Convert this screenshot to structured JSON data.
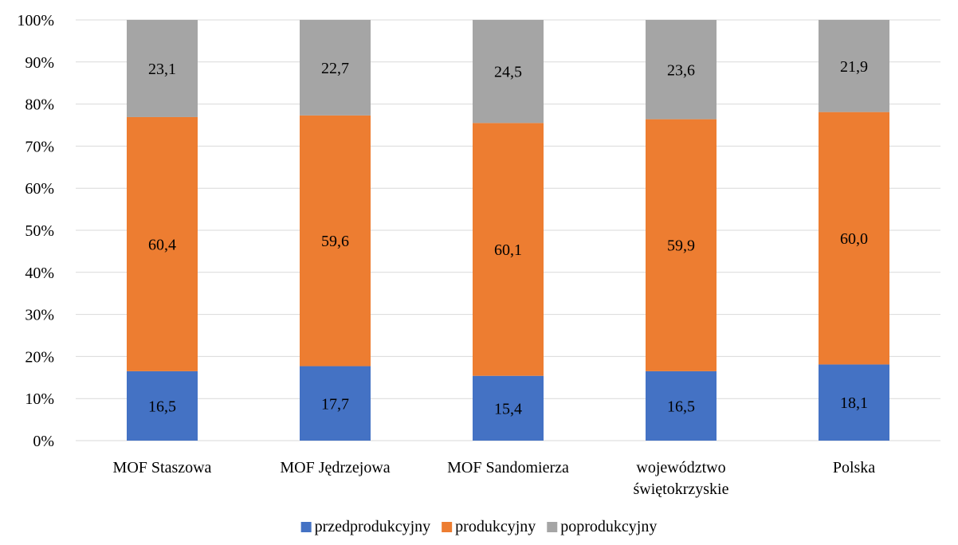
{
  "chart_data": {
    "type": "bar",
    "stacked": true,
    "percent_stacked": true,
    "categories": [
      [
        "MOF Staszowa"
      ],
      [
        "MOF Jędrzejowa"
      ],
      [
        "MOF Sandomierza"
      ],
      [
        "województwo",
        "świętokrzyskie"
      ],
      [
        "Polska"
      ]
    ],
    "series": [
      {
        "name": "przedprodukcyjny",
        "color": "#4472c4",
        "values": [
          16.5,
          17.7,
          15.4,
          16.5,
          18.1
        ],
        "labels": [
          "16,5",
          "17,7",
          "15,4",
          "16,5",
          "18,1"
        ]
      },
      {
        "name": "produkcyjny",
        "color": "#ed7d31",
        "values": [
          60.4,
          59.6,
          60.1,
          59.9,
          60.0
        ],
        "labels": [
          "60,4",
          "59,6",
          "60,1",
          "59,9",
          "60,0"
        ]
      },
      {
        "name": "poprodukcyjny",
        "color": "#a5a5a5",
        "values": [
          23.1,
          22.7,
          24.5,
          23.6,
          21.9
        ],
        "labels": [
          "23,1",
          "22,7",
          "24,5",
          "23,6",
          "21,9"
        ]
      }
    ],
    "y_ticks": [
      "0%",
      "10%",
      "20%",
      "30%",
      "40%",
      "50%",
      "60%",
      "70%",
      "80%",
      "90%",
      "100%"
    ],
    "ylim": [
      0,
      100
    ],
    "grid": true,
    "legend_position": "bottom"
  }
}
